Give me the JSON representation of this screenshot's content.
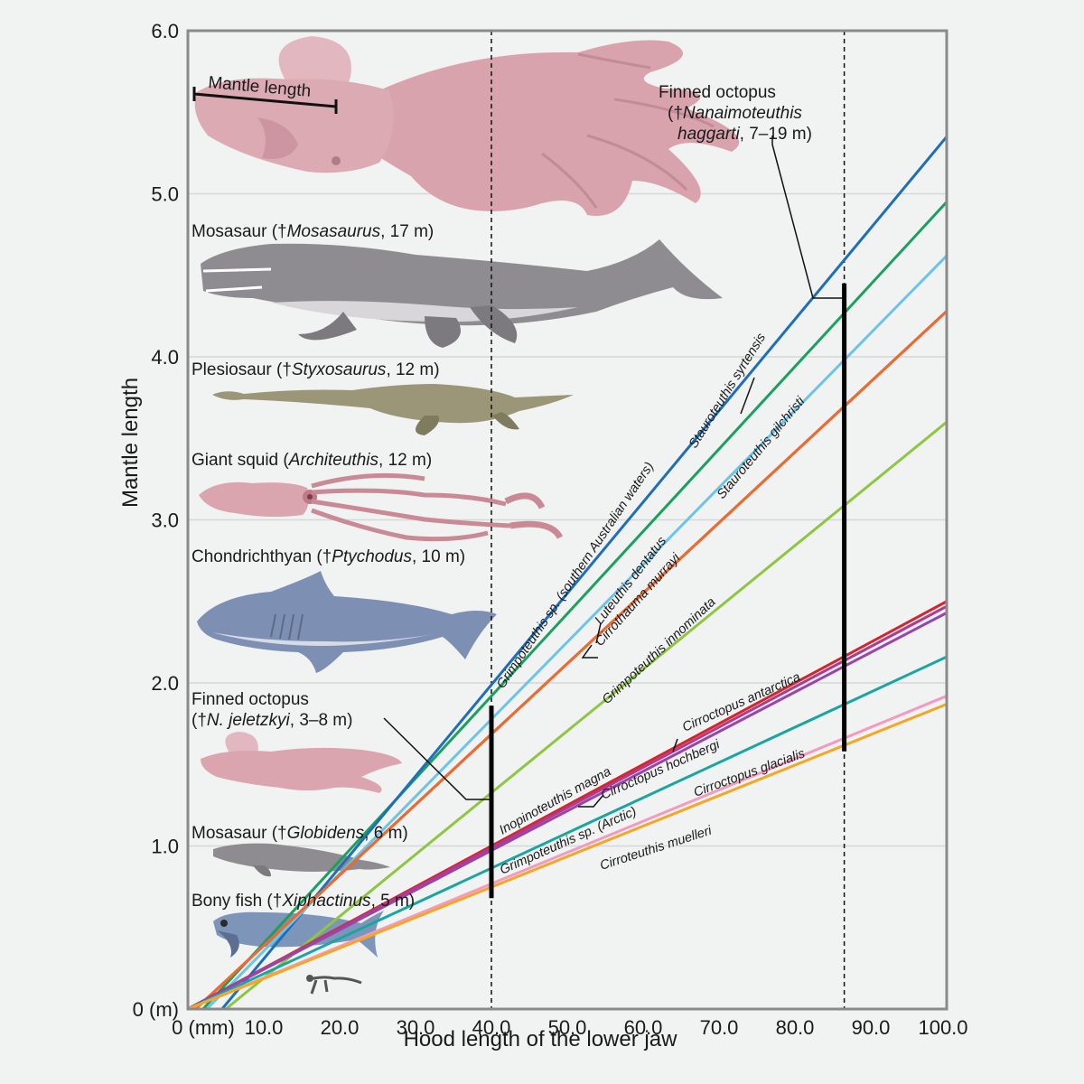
{
  "chart_data": {
    "type": "line",
    "xlabel": "Hood length of the lower jaw",
    "ylabel": "Mantle length",
    "xlim": [
      0,
      100
    ],
    "ylim": [
      0,
      6
    ],
    "x_ticks": [
      {
        "value": 0,
        "label": "0 (mm)"
      },
      {
        "value": 10,
        "label": "10.0"
      },
      {
        "value": 20,
        "label": "20.0"
      },
      {
        "value": 30,
        "label": "30.0"
      },
      {
        "value": 40,
        "label": "40.0"
      },
      {
        "value": 50,
        "label": "50.0"
      },
      {
        "value": 60,
        "label": "60.0"
      },
      {
        "value": 70,
        "label": "70.0"
      },
      {
        "value": 80,
        "label": "80.0"
      },
      {
        "value": 90,
        "label": "90.0"
      },
      {
        "value": 100,
        "label": "100.0"
      }
    ],
    "y_ticks": [
      {
        "value": 0,
        "label": "0 (m)"
      },
      {
        "value": 1,
        "label": "1.0"
      },
      {
        "value": 2,
        "label": "2.0"
      },
      {
        "value": 3,
        "label": "3.0"
      },
      {
        "value": 4,
        "label": "4.0"
      },
      {
        "value": 5,
        "label": "5.0"
      },
      {
        "value": 6,
        "label": "6.0"
      }
    ],
    "grid": "horizontal",
    "reference_lines_x": [
      40,
      86.5
    ],
    "ranges": [
      {
        "name": "N. jeletzkyi",
        "x": 40,
        "ymin": 0.68,
        "ymax": 1.86
      },
      {
        "name": "Nanaimoteuthis haggarti",
        "x": 86.5,
        "ymin": 1.58,
        "ymax": 4.45
      }
    ],
    "series": [
      {
        "name": "Grimpoteuthis sp. (southern Australian waters)",
        "color": "#1aa05f",
        "x": [
          2,
          100
        ],
        "y": [
          0,
          4.95
        ]
      },
      {
        "name": "Stauroteuthis syrtensis",
        "color": "#1e6fba",
        "x": [
          4.5,
          100
        ],
        "y": [
          0,
          5.35
        ]
      },
      {
        "name": "Luteuthis dentatus",
        "color": "#6cc4ea",
        "x": [
          2.5,
          100
        ],
        "y": [
          0,
          4.62
        ]
      },
      {
        "name": "Stauroteuthis gilchristi",
        "color": "#5b4fa3",
        "x": [
          1,
          100
        ],
        "y": [
          0,
          4.28
        ]
      },
      {
        "name": "Cirrothauma murrayi",
        "color": "#f26a2a",
        "x": [
          1,
          100
        ],
        "y": [
          0,
          4.28
        ]
      },
      {
        "name": "Grimpoteuthis innominata",
        "color": "#8dc63f",
        "x": [
          5,
          100
        ],
        "y": [
          0,
          3.6
        ]
      },
      {
        "name": "Inopinoteuthis magna",
        "color": "#d6242d",
        "x": [
          0,
          100
        ],
        "y": [
          0,
          2.5
        ]
      },
      {
        "name": "Cirroctopus antarctica",
        "color": "#b23a8e",
        "x": [
          0,
          100
        ],
        "y": [
          0,
          2.47
        ]
      },
      {
        "name": "Cirroctopus hochbergi",
        "color": "#9646a8",
        "x": [
          0,
          100
        ],
        "y": [
          0,
          2.43
        ]
      },
      {
        "name": "Grimpoteuthis sp. (Arctic)",
        "color": "#19a6a0",
        "x": [
          0,
          100
        ],
        "y": [
          0,
          2.16
        ]
      },
      {
        "name": "Cirroctopus glacialis",
        "color": "#f49ac1",
        "x": [
          0,
          100
        ],
        "y": [
          0,
          1.92
        ]
      },
      {
        "name": "Cirroteuthis muelleri",
        "color": "#f5a623",
        "x": [
          0,
          100
        ],
        "y": [
          0,
          1.87
        ]
      }
    ],
    "annotations": {
      "mantle_label": "Mantle length",
      "finned_big": {
        "line1": "Finned octopus",
        "line2_pre": "(†",
        "line2_italic": "Nanaimoteuthis",
        "line3_italic": "haggarti",
        "line3_post": ", 7–19 m)"
      },
      "mosasaurus": {
        "pre": "Mosasaur (†",
        "italic": "Mosasaurus",
        "post": ", 17 m)"
      },
      "plesiosaur": {
        "pre": "Plesiosaur (†",
        "italic": "Styxosaurus",
        "post": ", 12 m)"
      },
      "giant_squid": {
        "pre": "Giant squid (",
        "italic": "Architeuthis",
        "post": ", 12 m)"
      },
      "chondrichthyan": {
        "pre": "Chondrichthyan (†",
        "italic": "Ptychodus",
        "post": ", 10 m)"
      },
      "finned_small": {
        "line1": "Finned octopus",
        "line2_pre": "(†",
        "line2_italic": "N. jeletzkyi",
        "line2_post": ", 3–8 m)"
      },
      "globidens": {
        "pre": "Mosasaur (†",
        "italic": "Globidens",
        "post": ", 6 m)"
      },
      "xiphactinus": {
        "pre": "Bony fish (†",
        "italic": "Xiphactinus",
        "post": ", 5 m)"
      }
    }
  }
}
